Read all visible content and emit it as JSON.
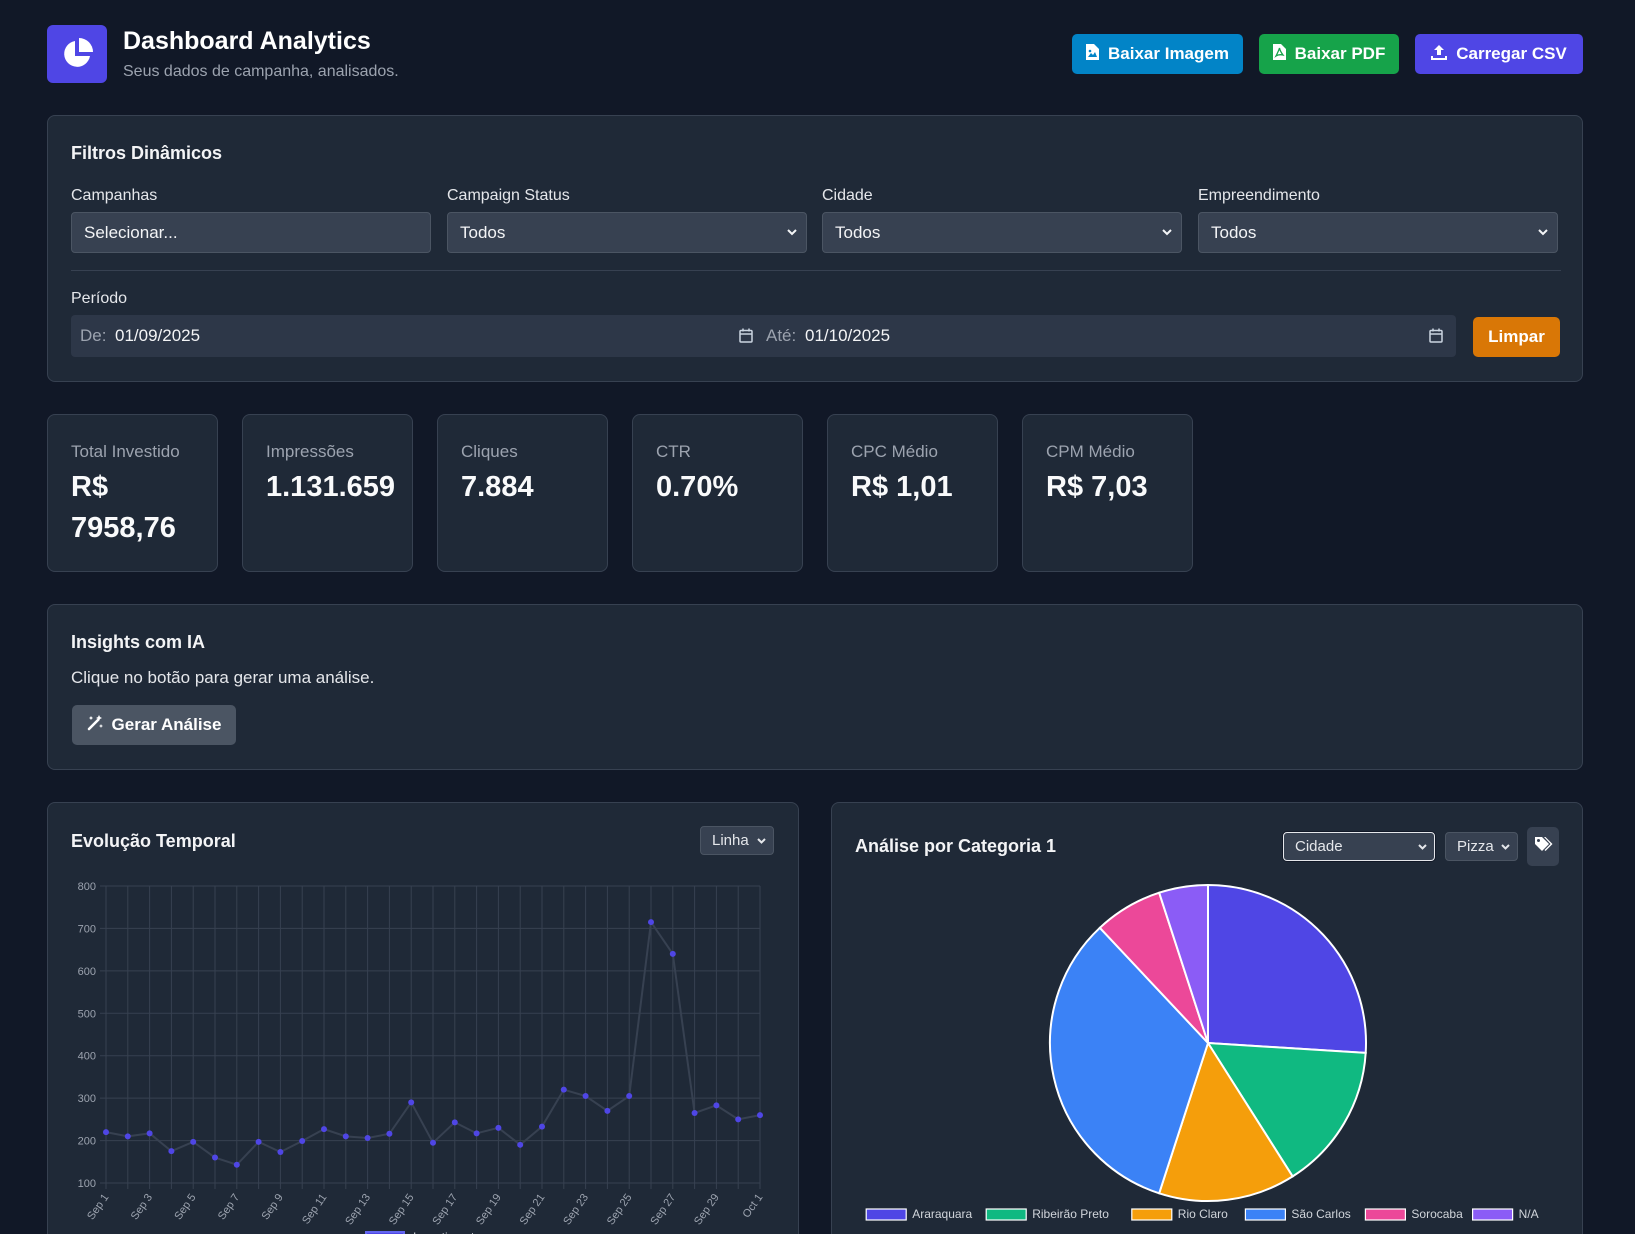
{
  "header": {
    "title": "Dashboard Analytics",
    "subtitle": "Seus dados de campanha, analisados.",
    "buttons": {
      "download_image": "Baixar Imagem",
      "download_pdf": "Baixar PDF",
      "upload_csv": "Carregar CSV"
    },
    "colors": {
      "brand": "#4f46e5",
      "image_btn": "#0284c7",
      "pdf_btn": "#16a34a"
    }
  },
  "filters": {
    "title": "Filtros Dinâmicos",
    "campaigns": {
      "label": "Campanhas",
      "value": "Selecionar..."
    },
    "status": {
      "label": "Campaign Status",
      "value": "Todos"
    },
    "city": {
      "label": "Cidade",
      "value": "Todos"
    },
    "development": {
      "label": "Empreendimento",
      "value": "Todos"
    },
    "period": {
      "label": "Período",
      "from_label": "De:",
      "from_value": "01/09/2025",
      "to_label": "Até:",
      "to_value": "01/10/2025"
    },
    "clear_label": "Limpar"
  },
  "kpis": [
    {
      "label": "Total Investido",
      "value": "R$ 7958,76"
    },
    {
      "label": "Impressões",
      "value": "1.131.659"
    },
    {
      "label": "Cliques",
      "value": "7.884"
    },
    {
      "label": "CTR",
      "value": "0.70%"
    },
    {
      "label": "CPC Médio",
      "value": "R$ 1,01"
    },
    {
      "label": "CPM Médio",
      "value": "R$ 7,03"
    }
  ],
  "insights": {
    "title": "Insights com IA",
    "description": "Clique no botão para gerar uma análise.",
    "button_label": "Gerar Análise"
  },
  "temporal": {
    "title": "Evolução Temporal",
    "chart_type_select": "Linha"
  },
  "category": {
    "title": "Análise por Categoria 1",
    "dimension_select": "Cidade",
    "chart_type_select": "Pizza",
    "tag_icon": "tags-icon"
  },
  "chart_data": [
    {
      "type": "line",
      "title": "",
      "xlabel": "",
      "ylabel": "",
      "ylim": [
        100,
        800
      ],
      "yticks": [
        100,
        200,
        300,
        400,
        500,
        600,
        700,
        800
      ],
      "grid": true,
      "legend": "bottom",
      "x": [
        "Sep 1",
        "Sep 2",
        "Sep 3",
        "Sep 4",
        "Sep 5",
        "Sep 6",
        "Sep 7",
        "Sep 8",
        "Sep 9",
        "Sep 10",
        "Sep 11",
        "Sep 12",
        "Sep 13",
        "Sep 14",
        "Sep 15",
        "Sep 16",
        "Sep 17",
        "Sep 18",
        "Sep 19",
        "Sep 20",
        "Sep 21",
        "Sep 22",
        "Sep 23",
        "Sep 24",
        "Sep 25",
        "Sep 26",
        "Sep 27",
        "Sep 28",
        "Sep 29",
        "Sep 30",
        "Oct 1"
      ],
      "xtick_labels": [
        "Sep 1",
        "Sep 3",
        "Sep 5",
        "Sep 7",
        "Sep 9",
        "Sep 11",
        "Sep 13",
        "Sep 15",
        "Sep 17",
        "Sep 19",
        "Sep 21",
        "Sep 23",
        "Sep 25",
        "Sep 27",
        "Sep 29",
        "Oct 1"
      ],
      "series": [
        {
          "name": "Investimento",
          "color": "#4f46e5",
          "line_color": "#374151",
          "values": [
            220,
            210,
            217,
            175,
            197,
            160,
            143,
            197,
            173,
            199,
            227,
            210,
            206,
            216,
            290,
            195,
            243,
            217,
            230,
            190,
            233,
            320,
            305,
            270,
            305,
            715,
            640,
            265,
            283,
            250,
            260
          ]
        }
      ]
    },
    {
      "type": "pie",
      "title": "",
      "legend": "bottom",
      "categories": [
        "Araraquara",
        "Ribeirão Preto",
        "Rio Claro",
        "São Carlos",
        "Sorocaba",
        "N/A"
      ],
      "values": [
        26,
        15,
        14,
        33,
        7,
        5
      ],
      "colors": [
        "#4f46e5",
        "#10b981",
        "#f59e0b",
        "#3b82f6",
        "#ec4899",
        "#8b5cf6"
      ]
    }
  ]
}
